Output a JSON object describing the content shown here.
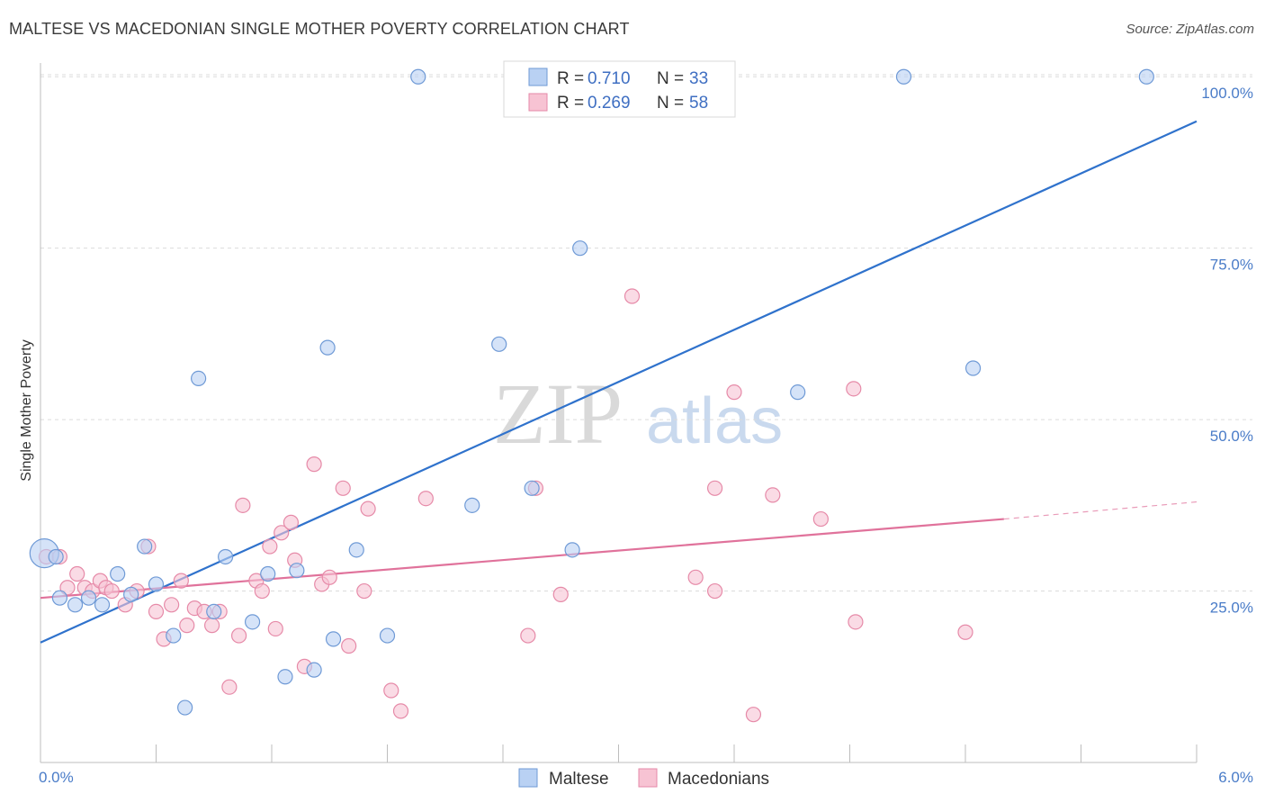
{
  "header": {
    "title": "MALTESE VS MACEDONIAN SINGLE MOTHER POVERTY CORRELATION CHART",
    "source": "Source: ZipAtlas.com"
  },
  "watermark": {
    "zip": "ZIP",
    "atlas": "atlas"
  },
  "legend_top": {
    "rows": [
      {
        "r_label": "R =",
        "r_value": "0.710",
        "n_label": "N =",
        "n_value": "33"
      },
      {
        "r_label": "R =",
        "r_value": "0.269",
        "n_label": "N =",
        "n_value": "58"
      }
    ]
  },
  "chart_data": {
    "type": "scatter",
    "title": "MALTESE VS MACEDONIAN SINGLE MOTHER POVERTY CORRELATION CHART",
    "xlabel": "",
    "ylabel": "Single Mother Poverty",
    "xlim": [
      0,
      6
    ],
    "ylim": [
      0,
      102
    ],
    "x_tick_labels": [
      "0.0%",
      "6.0%"
    ],
    "y_ticks": [
      25,
      50,
      75,
      100
    ],
    "y_tick_labels": [
      "25.0%",
      "50.0%",
      "75.0%",
      "100.0%"
    ],
    "grid": true,
    "legend_position": "top-center",
    "colors": {
      "maltese_fill": "#b9d1f3",
      "maltese_stroke": "#6f9ad6",
      "maltese_line": "#2f72cc",
      "macedonian_fill": "#f7c3d3",
      "macedonian_stroke": "#e68aa8",
      "macedonian_line": "#e0729b"
    },
    "series": [
      {
        "name": "Maltese",
        "r": 0.71,
        "n": 33,
        "trend": {
          "x": [
            0,
            6
          ],
          "y": [
            17.5,
            93.5
          ]
        },
        "points": [
          {
            "x": 0.02,
            "y": 30.5,
            "big": true
          },
          {
            "x": 0.08,
            "y": 30
          },
          {
            "x": 0.1,
            "y": 24
          },
          {
            "x": 0.18,
            "y": 23
          },
          {
            "x": 0.25,
            "y": 24
          },
          {
            "x": 0.32,
            "y": 23
          },
          {
            "x": 0.4,
            "y": 27.5
          },
          {
            "x": 0.47,
            "y": 24.5
          },
          {
            "x": 0.54,
            "y": 31.5
          },
          {
            "x": 0.6,
            "y": 26
          },
          {
            "x": 0.69,
            "y": 18.5
          },
          {
            "x": 0.75,
            "y": 8
          },
          {
            "x": 0.82,
            "y": 56
          },
          {
            "x": 0.9,
            "y": 22
          },
          {
            "x": 0.96,
            "y": 30
          },
          {
            "x": 1.1,
            "y": 20.5
          },
          {
            "x": 1.18,
            "y": 27.5
          },
          {
            "x": 1.27,
            "y": 12.5
          },
          {
            "x": 1.33,
            "y": 28
          },
          {
            "x": 1.42,
            "y": 13.5
          },
          {
            "x": 1.49,
            "y": 60.5
          },
          {
            "x": 1.52,
            "y": 18
          },
          {
            "x": 1.64,
            "y": 31
          },
          {
            "x": 1.8,
            "y": 18.5
          },
          {
            "x": 1.96,
            "y": 100
          },
          {
            "x": 2.24,
            "y": 37.5
          },
          {
            "x": 2.38,
            "y": 61
          },
          {
            "x": 2.55,
            "y": 40
          },
          {
            "x": 2.76,
            "y": 31
          },
          {
            "x": 2.8,
            "y": 75
          },
          {
            "x": 3.93,
            "y": 54
          },
          {
            "x": 4.48,
            "y": 100
          },
          {
            "x": 4.84,
            "y": 57.5
          },
          {
            "x": 5.74,
            "y": 100
          }
        ]
      },
      {
        "name": "Macedonians",
        "r": 0.269,
        "n": 58,
        "trend": {
          "x": [
            0,
            5
          ],
          "y": [
            24,
            35.5
          ]
        },
        "trend_dashed": {
          "x": [
            5,
            6
          ],
          "y": [
            35.5,
            38
          ]
        },
        "points": [
          {
            "x": 0.03,
            "y": 30
          },
          {
            "x": 0.1,
            "y": 30
          },
          {
            "x": 0.14,
            "y": 25.5
          },
          {
            "x": 0.19,
            "y": 27.5
          },
          {
            "x": 0.23,
            "y": 25.5
          },
          {
            "x": 0.27,
            "y": 25
          },
          {
            "x": 0.31,
            "y": 26.5
          },
          {
            "x": 0.34,
            "y": 25.5
          },
          {
            "x": 0.37,
            "y": 25
          },
          {
            "x": 0.44,
            "y": 23
          },
          {
            "x": 0.5,
            "y": 25
          },
          {
            "x": 0.56,
            "y": 31.5
          },
          {
            "x": 0.6,
            "y": 22
          },
          {
            "x": 0.64,
            "y": 18
          },
          {
            "x": 0.68,
            "y": 23
          },
          {
            "x": 0.73,
            "y": 26.5
          },
          {
            "x": 0.76,
            "y": 20
          },
          {
            "x": 0.8,
            "y": 22.5
          },
          {
            "x": 0.85,
            "y": 22
          },
          {
            "x": 0.89,
            "y": 20
          },
          {
            "x": 0.93,
            "y": 22
          },
          {
            "x": 0.98,
            "y": 11
          },
          {
            "x": 1.03,
            "y": 18.5
          },
          {
            "x": 1.05,
            "y": 37.5
          },
          {
            "x": 1.12,
            "y": 26.5
          },
          {
            "x": 1.15,
            "y": 25
          },
          {
            "x": 1.19,
            "y": 31.5
          },
          {
            "x": 1.22,
            "y": 19.5
          },
          {
            "x": 1.25,
            "y": 33.5
          },
          {
            "x": 1.3,
            "y": 35
          },
          {
            "x": 1.32,
            "y": 29.5
          },
          {
            "x": 1.37,
            "y": 14
          },
          {
            "x": 1.42,
            "y": 43.5
          },
          {
            "x": 1.46,
            "y": 26
          },
          {
            "x": 1.5,
            "y": 27
          },
          {
            "x": 1.57,
            "y": 40
          },
          {
            "x": 1.6,
            "y": 17
          },
          {
            "x": 1.68,
            "y": 25
          },
          {
            "x": 1.7,
            "y": 37
          },
          {
            "x": 1.82,
            "y": 10.5
          },
          {
            "x": 1.87,
            "y": 7.5
          },
          {
            "x": 2.0,
            "y": 38.5
          },
          {
            "x": 2.53,
            "y": 18.5
          },
          {
            "x": 2.57,
            "y": 40
          },
          {
            "x": 2.7,
            "y": 24.5
          },
          {
            "x": 3.07,
            "y": 68
          },
          {
            "x": 3.4,
            "y": 27
          },
          {
            "x": 3.5,
            "y": 40
          },
          {
            "x": 3.5,
            "y": 25
          },
          {
            "x": 3.6,
            "y": 54
          },
          {
            "x": 3.7,
            "y": 7
          },
          {
            "x": 3.8,
            "y": 39
          },
          {
            "x": 4.05,
            "y": 35.5
          },
          {
            "x": 4.22,
            "y": 54.5
          },
          {
            "x": 4.23,
            "y": 20.5
          },
          {
            "x": 4.8,
            "y": 19
          }
        ]
      }
    ]
  },
  "legend_bottom": {
    "items": [
      "Maltese",
      "Macedonians"
    ]
  }
}
